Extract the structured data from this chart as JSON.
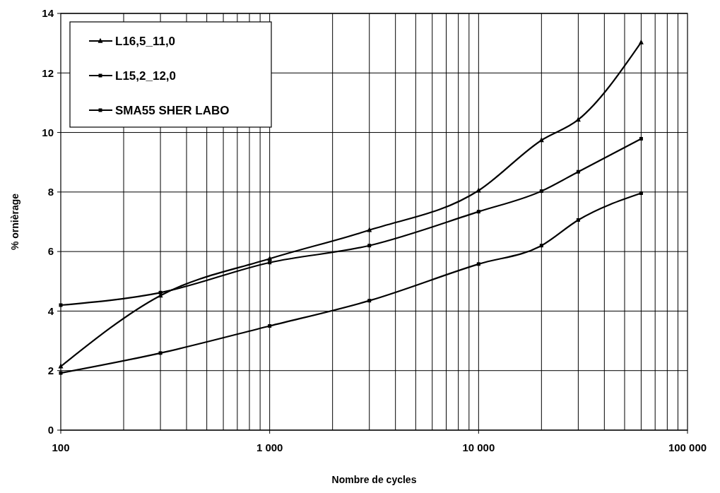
{
  "chart_data": {
    "type": "line",
    "xlabel": "Nombre de cycles",
    "ylabel": "% ornièrage",
    "log": "x",
    "grid": true,
    "legend": "top left",
    "line_style": "solid",
    "xlim": [
      100,
      100000
    ],
    "xticks": [
      100,
      {
        "value": 1000,
        "label": "1 000"
      },
      {
        "value": 10000,
        "label": "10 000"
      },
      {
        "value": 100000,
        "label": "100 000"
      }
    ],
    "ylim": [
      0,
      14
    ],
    "yticks": [
      0,
      2,
      4,
      6,
      8,
      10,
      12,
      14
    ],
    "x": [
      100,
      300,
      1000,
      3000,
      10000,
      20000,
      30000,
      60000
    ],
    "series": [
      {
        "name": "L16,5_11,0",
        "color": "#000000",
        "marker": "triangle",
        "values": [
          2.14,
          4.52,
          5.76,
          6.72,
          8.05,
          9.74,
          10.43,
          13.03
        ]
      },
      {
        "name": "L15,2_12,0",
        "color": "#000000",
        "marker": "square",
        "values": [
          4.2,
          4.62,
          5.63,
          6.2,
          7.34,
          8.03,
          8.68,
          9.79
        ]
      },
      {
        "name": "SMA55 SHER LABO",
        "color": "#000000",
        "marker": "square",
        "values": [
          1.92,
          2.59,
          3.5,
          4.35,
          5.58,
          6.2,
          7.06,
          7.96
        ]
      }
    ]
  }
}
